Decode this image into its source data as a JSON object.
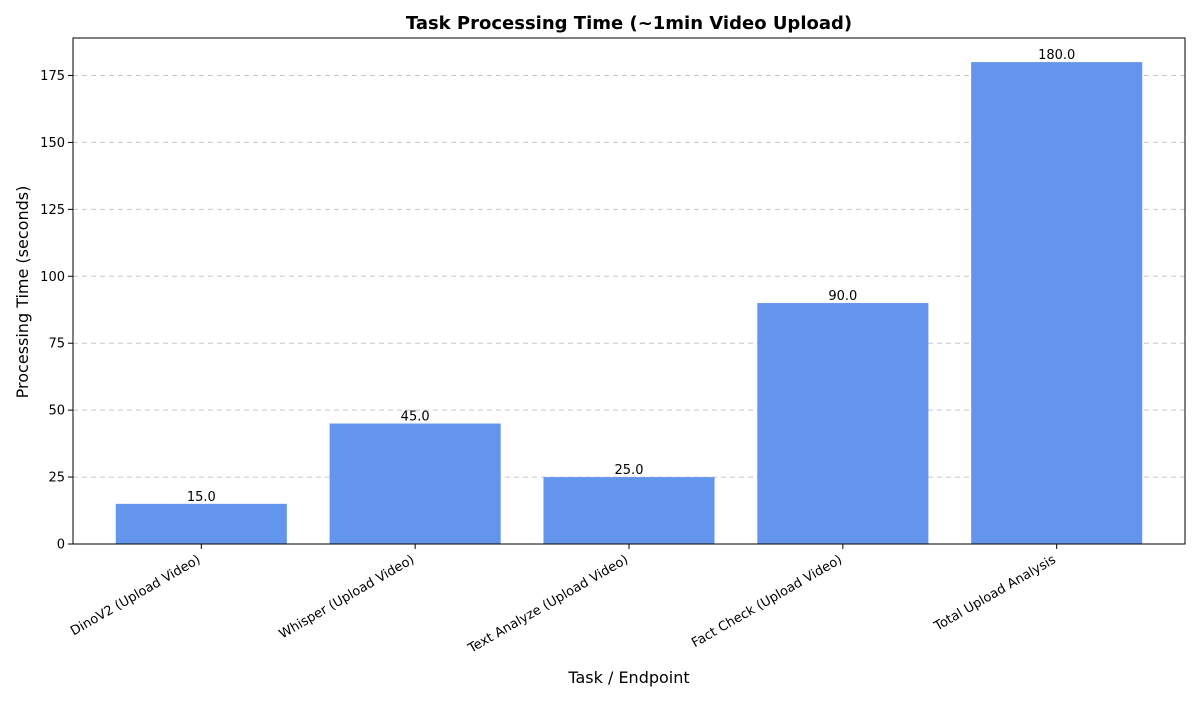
{
  "chart_data": {
    "type": "bar",
    "title": "Task Processing Time (~1min Video Upload)",
    "xlabel": "Task / Endpoint",
    "ylabel": "Processing Time (seconds)",
    "categories": [
      "DinoV2 (Upload Video)",
      "Whisper (Upload Video)",
      "Text Analyze (Upload Video)",
      "Fact Check (Upload Video)",
      "Total Upload Analysis"
    ],
    "values": [
      15.0,
      45.0,
      25.0,
      90.0,
      180.0
    ],
    "value_labels": [
      "15.0",
      "45.0",
      "25.0",
      "90.0",
      "180.0"
    ],
    "yticks": [
      0,
      25,
      50,
      75,
      100,
      125,
      150,
      175
    ],
    "ylim": [
      0,
      189
    ],
    "grid": "y-dashed",
    "bar_color": "#6495ED"
  }
}
